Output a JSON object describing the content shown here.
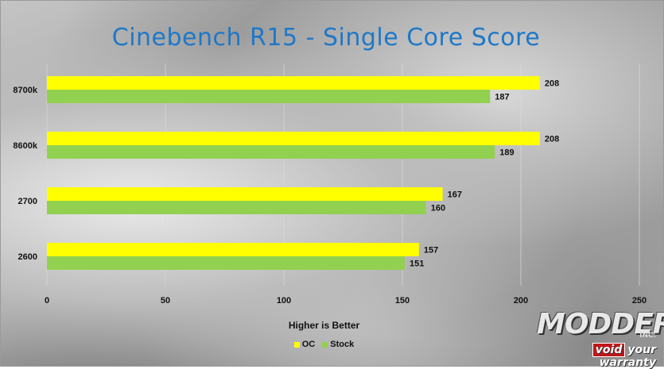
{
  "chart_data": {
    "type": "bar",
    "orientation": "horizontal",
    "title": "Cinebench R15 - Single Core Score",
    "subtitle": "Higher is Better",
    "categories": [
      "8700k",
      "8600k",
      "2700",
      "2600"
    ],
    "series": [
      {
        "name": "OC",
        "color": "#ffff00",
        "values": [
          208,
          208,
          167,
          157
        ]
      },
      {
        "name": "Stock",
        "color": "#92d050",
        "values": [
          187,
          189,
          160,
          151
        ]
      }
    ],
    "xlim": [
      0,
      250
    ],
    "xticks": [
      0,
      50,
      100,
      150,
      200,
      250
    ],
    "grid": true,
    "legend": "bottom"
  },
  "logo": {
    "main": "MODDERS",
    "inc": "INC.",
    "void": "void",
    "tagline": "your warranty"
  }
}
